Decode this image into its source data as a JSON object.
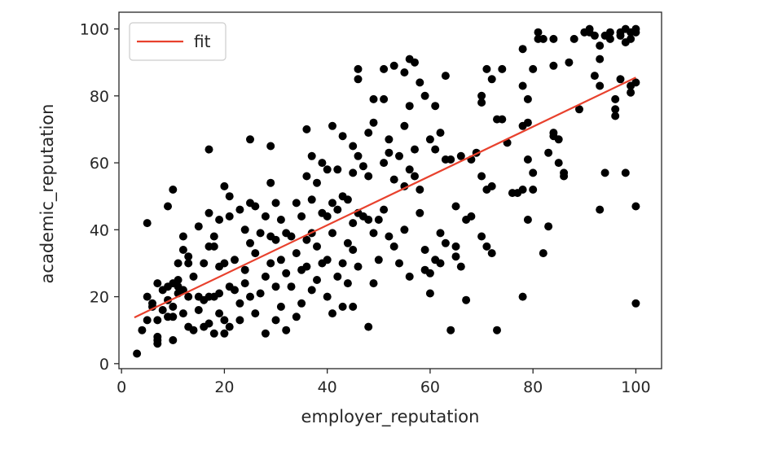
{
  "chart_data": {
    "type": "scatter",
    "xlabel": "employer_reputation",
    "ylabel": "academic_reputation",
    "xlim": [
      -0.5,
      105
    ],
    "ylim": [
      -1.5,
      105
    ],
    "xticks": [
      0,
      20,
      40,
      60,
      80,
      100
    ],
    "yticks": [
      0,
      20,
      40,
      60,
      80,
      100
    ],
    "grid": false,
    "legend": {
      "position": "top-left",
      "entries": [
        "fit"
      ]
    },
    "colors": {
      "points": "#000000",
      "fit": "#e8412d",
      "axes": "#262626",
      "legend_border": "#cccccc"
    },
    "fit_line": {
      "name": "fit",
      "x": [
        2.5,
        100
      ],
      "y": [
        13.8,
        85.5
      ]
    },
    "points": [
      [
        3,
        3
      ],
      [
        4,
        10
      ],
      [
        5,
        42
      ],
      [
        5,
        20
      ],
      [
        5,
        13
      ],
      [
        6,
        18
      ],
      [
        6,
        17
      ],
      [
        7,
        8
      ],
      [
        7,
        7
      ],
      [
        7,
        6
      ],
      [
        7,
        13
      ],
      [
        7,
        24
      ],
      [
        8,
        16
      ],
      [
        8,
        22
      ],
      [
        9,
        23
      ],
      [
        9,
        47
      ],
      [
        9,
        19
      ],
      [
        9,
        14
      ],
      [
        10,
        24
      ],
      [
        10,
        17
      ],
      [
        10,
        14
      ],
      [
        10,
        52
      ],
      [
        10,
        7
      ],
      [
        11,
        21
      ],
      [
        11,
        25
      ],
      [
        11,
        30
      ],
      [
        11,
        23
      ],
      [
        12,
        38
      ],
      [
        12,
        34
      ],
      [
        12,
        22
      ],
      [
        12,
        15
      ],
      [
        13,
        32
      ],
      [
        13,
        30
      ],
      [
        13,
        20
      ],
      [
        13,
        11
      ],
      [
        14,
        10
      ],
      [
        14,
        26
      ],
      [
        15,
        41
      ],
      [
        15,
        20
      ],
      [
        15,
        16
      ],
      [
        16,
        30
      ],
      [
        16,
        19
      ],
      [
        16,
        11
      ],
      [
        17,
        64
      ],
      [
        17,
        45
      ],
      [
        17,
        35
      ],
      [
        17,
        20
      ],
      [
        17,
        12
      ],
      [
        18,
        38
      ],
      [
        18,
        35
      ],
      [
        18,
        20
      ],
      [
        18,
        9
      ],
      [
        19,
        43
      ],
      [
        19,
        29
      ],
      [
        19,
        15
      ],
      [
        19,
        21
      ],
      [
        20,
        53
      ],
      [
        20,
        30
      ],
      [
        20,
        13
      ],
      [
        20,
        9
      ],
      [
        21,
        50
      ],
      [
        21,
        44
      ],
      [
        21,
        23
      ],
      [
        21,
        11
      ],
      [
        22,
        31
      ],
      [
        22,
        22
      ],
      [
        23,
        46
      ],
      [
        23,
        18
      ],
      [
        23,
        13
      ],
      [
        24,
        40
      ],
      [
        24,
        28
      ],
      [
        24,
        24
      ],
      [
        25,
        67
      ],
      [
        25,
        48
      ],
      [
        25,
        36
      ],
      [
        25,
        20
      ],
      [
        26,
        47
      ],
      [
        26,
        33
      ],
      [
        26,
        15
      ],
      [
        27,
        39
      ],
      [
        27,
        21
      ],
      [
        28,
        44
      ],
      [
        28,
        26
      ],
      [
        28,
        9
      ],
      [
        29,
        65
      ],
      [
        29,
        54
      ],
      [
        29,
        38
      ],
      [
        29,
        30
      ],
      [
        30,
        48
      ],
      [
        30,
        37
      ],
      [
        30,
        23
      ],
      [
        30,
        13
      ],
      [
        31,
        43
      ],
      [
        31,
        31
      ],
      [
        31,
        17
      ],
      [
        32,
        39
      ],
      [
        32,
        27
      ],
      [
        32,
        10
      ],
      [
        33,
        38
      ],
      [
        33,
        23
      ],
      [
        34,
        48
      ],
      [
        34,
        33
      ],
      [
        34,
        14
      ],
      [
        35,
        44
      ],
      [
        35,
        28
      ],
      [
        35,
        18
      ],
      [
        36,
        70
      ],
      [
        36,
        56
      ],
      [
        36,
        37
      ],
      [
        36,
        29
      ],
      [
        37,
        62
      ],
      [
        37,
        49
      ],
      [
        37,
        39
      ],
      [
        37,
        22
      ],
      [
        38,
        54
      ],
      [
        38,
        35
      ],
      [
        38,
        25
      ],
      [
        39,
        60
      ],
      [
        39,
        45
      ],
      [
        39,
        30
      ],
      [
        40,
        58
      ],
      [
        40,
        44
      ],
      [
        40,
        31
      ],
      [
        40,
        20
      ],
      [
        41,
        71
      ],
      [
        41,
        48
      ],
      [
        41,
        39
      ],
      [
        41,
        15
      ],
      [
        42,
        58
      ],
      [
        42,
        46
      ],
      [
        42,
        26
      ],
      [
        43,
        68
      ],
      [
        43,
        50
      ],
      [
        43,
        30
      ],
      [
        43,
        17
      ],
      [
        44,
        49
      ],
      [
        44,
        36
      ],
      [
        44,
        24
      ],
      [
        45,
        65
      ],
      [
        45,
        57
      ],
      [
        45,
        42
      ],
      [
        45,
        34
      ],
      [
        45,
        17
      ],
      [
        46,
        88
      ],
      [
        46,
        85
      ],
      [
        46,
        62
      ],
      [
        46,
        45
      ],
      [
        46,
        29
      ],
      [
        47,
        59
      ],
      [
        47,
        44
      ],
      [
        48,
        69
      ],
      [
        48,
        56
      ],
      [
        48,
        43
      ],
      [
        48,
        11
      ],
      [
        49,
        79
      ],
      [
        49,
        72
      ],
      [
        49,
        39
      ],
      [
        49,
        24
      ],
      [
        50,
        43
      ],
      [
        50,
        31
      ],
      [
        51,
        88
      ],
      [
        51,
        79
      ],
      [
        51,
        60
      ],
      [
        51,
        46
      ],
      [
        52,
        67
      ],
      [
        52,
        63
      ],
      [
        52,
        38
      ],
      [
        53,
        89
      ],
      [
        53,
        55
      ],
      [
        53,
        35
      ],
      [
        54,
        62
      ],
      [
        54,
        30
      ],
      [
        55,
        87
      ],
      [
        55,
        71
      ],
      [
        55,
        53
      ],
      [
        55,
        40
      ],
      [
        56,
        91
      ],
      [
        56,
        77
      ],
      [
        56,
        58
      ],
      [
        56,
        26
      ],
      [
        57,
        90
      ],
      [
        57,
        64
      ],
      [
        57,
        56
      ],
      [
        58,
        84
      ],
      [
        58,
        52
      ],
      [
        58,
        45
      ],
      [
        59,
        80
      ],
      [
        59,
        34
      ],
      [
        59,
        28
      ],
      [
        60,
        67
      ],
      [
        60,
        21
      ],
      [
        60,
        27
      ],
      [
        61,
        77
      ],
      [
        61,
        64
      ],
      [
        61,
        31
      ],
      [
        62,
        69
      ],
      [
        62,
        39
      ],
      [
        62,
        30
      ],
      [
        63,
        86
      ],
      [
        63,
        61
      ],
      [
        63,
        36
      ],
      [
        64,
        10
      ],
      [
        64,
        61
      ],
      [
        65,
        47
      ],
      [
        65,
        35
      ],
      [
        65,
        32
      ],
      [
        66,
        62
      ],
      [
        66,
        29
      ],
      [
        67,
        43
      ],
      [
        67,
        19
      ],
      [
        68,
        61
      ],
      [
        68,
        44
      ],
      [
        69,
        63
      ],
      [
        70,
        80
      ],
      [
        70,
        78
      ],
      [
        70,
        56
      ],
      [
        70,
        38
      ],
      [
        71,
        88
      ],
      [
        71,
        52
      ],
      [
        71,
        35
      ],
      [
        72,
        85
      ],
      [
        72,
        53
      ],
      [
        72,
        33
      ],
      [
        73,
        10
      ],
      [
        73,
        73
      ],
      [
        74,
        88
      ],
      [
        74,
        73
      ],
      [
        75,
        66
      ],
      [
        76,
        51
      ],
      [
        77,
        51
      ],
      [
        78,
        94
      ],
      [
        78,
        83
      ],
      [
        78,
        71
      ],
      [
        78,
        52
      ],
      [
        78,
        20
      ],
      [
        79,
        79
      ],
      [
        79,
        72
      ],
      [
        79,
        61
      ],
      [
        79,
        43
      ],
      [
        80,
        88
      ],
      [
        80,
        52
      ],
      [
        80,
        57
      ],
      [
        81,
        99
      ],
      [
        81,
        97
      ],
      [
        82,
        97
      ],
      [
        82,
        33
      ],
      [
        83,
        63
      ],
      [
        83,
        41
      ],
      [
        84,
        97
      ],
      [
        84,
        89
      ],
      [
        84,
        69
      ],
      [
        84,
        68
      ],
      [
        85,
        67
      ],
      [
        85,
        60
      ],
      [
        86,
        57
      ],
      [
        86,
        56
      ],
      [
        87,
        90
      ],
      [
        88,
        97
      ],
      [
        89,
        76
      ],
      [
        90,
        99
      ],
      [
        91,
        100
      ],
      [
        91,
        99
      ],
      [
        92,
        86
      ],
      [
        92,
        98
      ],
      [
        93,
        95
      ],
      [
        93,
        91
      ],
      [
        93,
        83
      ],
      [
        93,
        46
      ],
      [
        94,
        98
      ],
      [
        94,
        57
      ],
      [
        95,
        99
      ],
      [
        95,
        97
      ],
      [
        96,
        79
      ],
      [
        96,
        76
      ],
      [
        96,
        74
      ],
      [
        97,
        99
      ],
      [
        97,
        98
      ],
      [
        97,
        85
      ],
      [
        98,
        100
      ],
      [
        98,
        96
      ],
      [
        98,
        57
      ],
      [
        99,
        99
      ],
      [
        99,
        97
      ],
      [
        99,
        83
      ],
      [
        99,
        81
      ],
      [
        100,
        100
      ],
      [
        100,
        99
      ],
      [
        100,
        84
      ],
      [
        100,
        47
      ],
      [
        100,
        18
      ]
    ]
  }
}
